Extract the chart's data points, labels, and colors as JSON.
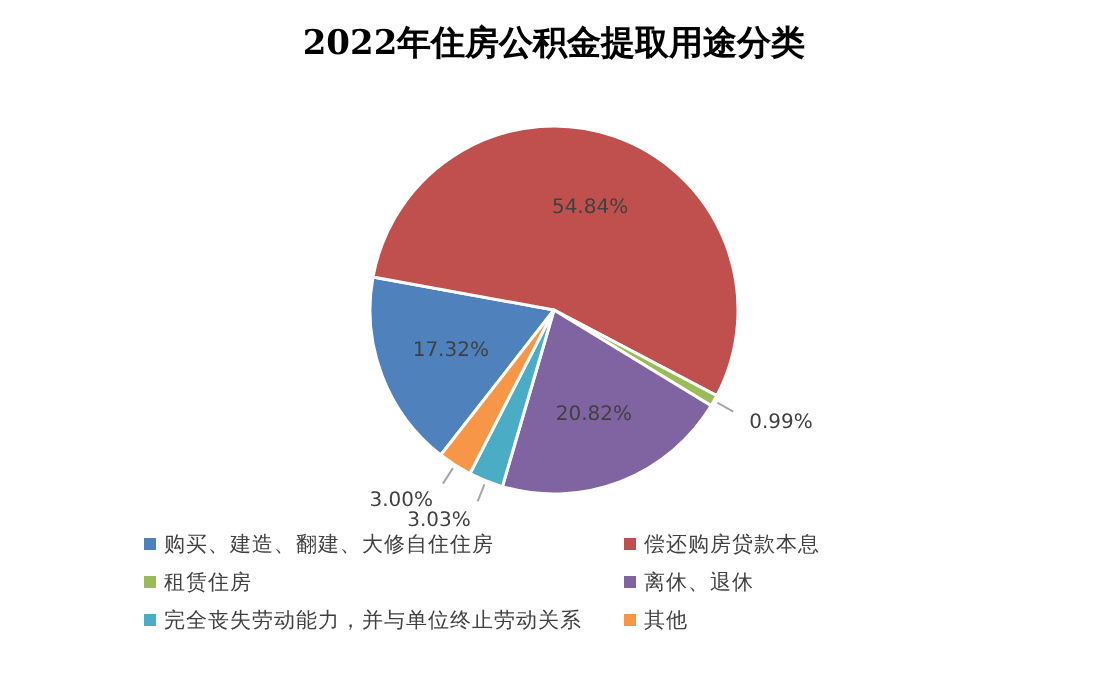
{
  "chart_data": {
    "type": "pie",
    "title": "2022年住房公积金提取用途分类",
    "categories": [
      "购买、建造、翻建、大修自住住房",
      "偿还购房贷款本息",
      "租赁住房",
      "离休、退休",
      "完全丧失劳动能力，并与单位终止劳动关系",
      "其他"
    ],
    "values": [
      17.32,
      54.84,
      0.99,
      20.82,
      3.03,
      3.0
    ],
    "colors": [
      "#4f81bd",
      "#c0504d",
      "#9bbb59",
      "#8064a2",
      "#4bacc6",
      "#f79646"
    ],
    "value_labels": [
      "17.32%",
      "54.84%",
      "0.99%",
      "20.82%",
      "3.03%",
      "3.00%"
    ],
    "legend": "bottom"
  }
}
